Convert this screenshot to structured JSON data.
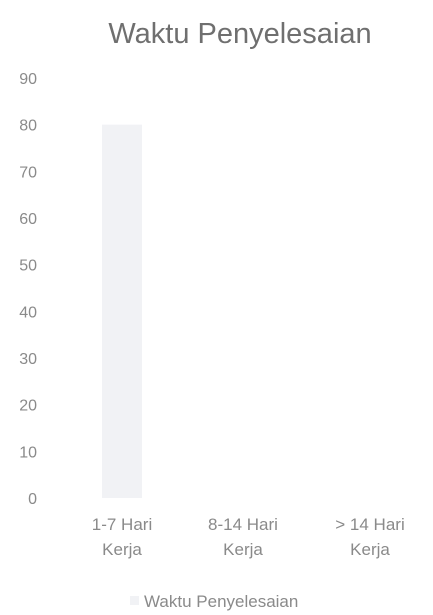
{
  "chart_data": {
    "type": "bar",
    "title": "Waktu Penyelesaian",
    "categories": [
      [
        "1-7 Hari",
        "Kerja"
      ],
      [
        "8-14 Hari",
        "Kerja"
      ],
      [
        "> 14 Hari",
        "Kerja"
      ]
    ],
    "series": [
      {
        "name": "Waktu Penyelesaian",
        "values": [
          80,
          0,
          0
        ],
        "color": "#f1f2f5"
      }
    ],
    "yticks": [
      0,
      10,
      20,
      30,
      40,
      50,
      60,
      70,
      80,
      90
    ],
    "ylim": [
      0,
      90
    ],
    "grid": false,
    "legend": "bottom"
  }
}
